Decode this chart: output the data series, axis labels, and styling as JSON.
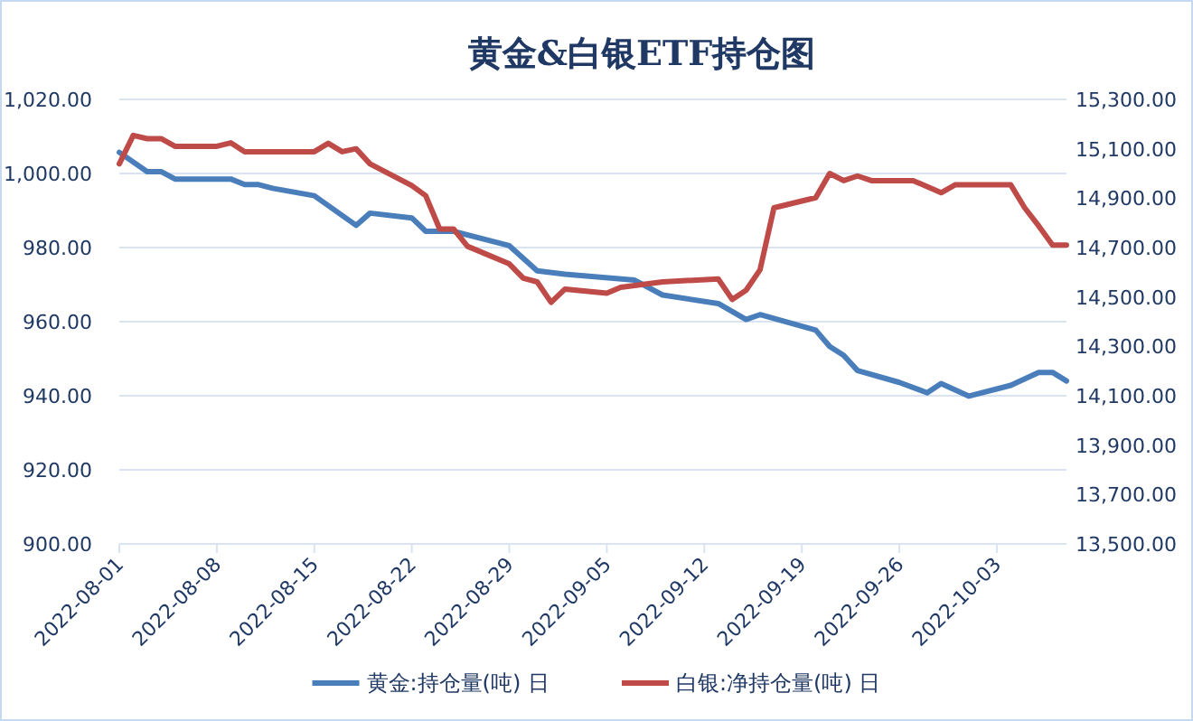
{
  "chart_data": {
    "type": "line",
    "title": "黄金&白银ETF持仓图",
    "legend": "bottom",
    "grid": "y",
    "line_style": "solid",
    "xlim": [
      "2022-08-01",
      "2022-10-08"
    ],
    "xticks": [
      "2022-08-01",
      "2022-08-08",
      "2022-08-15",
      "2022-08-22",
      "2022-08-29",
      "2022-09-05",
      "2022-09-12",
      "2022-09-19",
      "2022-09-26",
      "2022-10-03"
    ],
    "ylim": [
      900,
      1020
    ],
    "yticks": [
      {
        "value": 900,
        "label": "900.00"
      },
      {
        "value": 920,
        "label": "920.00"
      },
      {
        "value": 940,
        "label": "940.00"
      },
      {
        "value": 960,
        "label": "960.00"
      },
      {
        "value": 980,
        "label": "980.00"
      },
      {
        "value": 1000,
        "label": "1,000.00"
      },
      {
        "value": 1020,
        "label": "1,020.00"
      }
    ],
    "y2lim": [
      13500,
      15300
    ],
    "y2ticks": [
      {
        "value": 13500,
        "label": "13,500.00"
      },
      {
        "value": 13700,
        "label": "13,700.00"
      },
      {
        "value": 13900,
        "label": "13,900.00"
      },
      {
        "value": 14100,
        "label": "14,100.00"
      },
      {
        "value": 14300,
        "label": "14,300.00"
      },
      {
        "value": 14500,
        "label": "14,500.00"
      },
      {
        "value": 14700,
        "label": "14,700.00"
      },
      {
        "value": 14900,
        "label": "14,900.00"
      },
      {
        "value": 15100,
        "label": "15,100.00"
      },
      {
        "value": 15300,
        "label": "15,300.00"
      }
    ],
    "series": [
      {
        "name": "黄金:持仓量(吨) 日",
        "color": "#4a7ebb",
        "x": [
          "2022-08-01",
          "2022-08-03",
          "2022-08-04",
          "2022-08-05",
          "2022-08-09",
          "2022-08-10",
          "2022-08-11",
          "2022-08-12",
          "2022-08-15",
          "2022-08-18",
          "2022-08-19",
          "2022-08-22",
          "2022-08-23",
          "2022-08-25",
          "2022-08-29",
          "2022-08-31",
          "2022-09-02",
          "2022-09-07",
          "2022-09-09",
          "2022-09-13",
          "2022-09-15",
          "2022-09-16",
          "2022-09-20",
          "2022-09-21",
          "2022-09-22",
          "2022-09-23",
          "2022-09-26",
          "2022-09-28",
          "2022-09-29",
          "2022-10-01",
          "2022-10-04",
          "2022-10-06",
          "2022-10-07",
          "2022-10-08"
        ],
        "values": [
          1005.7,
          1000.5,
          1000.5,
          998.5,
          998.5,
          997,
          997,
          996,
          994,
          986,
          989.3,
          988,
          984.4,
          984.4,
          980.5,
          973.7,
          972.8,
          971.2,
          967.2,
          964.9,
          960.6,
          961.9,
          957.7,
          953.3,
          950.9,
          946.8,
          943.6,
          940.8,
          943.3,
          939.9,
          942.8,
          946.3,
          946.3,
          944
        ]
      },
      {
        "name": "白银:净持仓量(吨) 日",
        "color": "#be4b48",
        "axis": "y2",
        "x": [
          "2022-08-01",
          "2022-08-02",
          "2022-08-03",
          "2022-08-04",
          "2022-08-05",
          "2022-08-08",
          "2022-08-09",
          "2022-08-10",
          "2022-08-15",
          "2022-08-16",
          "2022-08-17",
          "2022-08-18",
          "2022-08-19",
          "2022-08-22",
          "2022-08-23",
          "2022-08-24",
          "2022-08-25",
          "2022-08-26",
          "2022-08-29",
          "2022-08-30",
          "2022-08-31",
          "2022-09-01",
          "2022-09-02",
          "2022-09-05",
          "2022-09-06",
          "2022-09-09",
          "2022-09-13",
          "2022-09-14",
          "2022-09-15",
          "2022-09-16",
          "2022-09-17",
          "2022-09-20",
          "2022-09-21",
          "2022-09-22",
          "2022-09-23",
          "2022-09-24",
          "2022-09-27",
          "2022-09-29",
          "2022-09-30",
          "2022-10-04",
          "2022-10-05",
          "2022-10-06",
          "2022-10-07",
          "2022-10-08"
        ],
        "values": [
          15039,
          15154,
          15141,
          15141,
          15110,
          15110,
          15124,
          15088,
          15088,
          15122,
          15088,
          15100,
          15039,
          14951,
          14910,
          14775,
          14775,
          14705,
          14634,
          14576,
          14561,
          14478,
          14532,
          14515,
          14539,
          14561,
          14573,
          14490,
          14527,
          14610,
          14861,
          14902,
          15000,
          14971,
          14990,
          14971,
          14971,
          14922,
          14954,
          14954,
          14861,
          14788,
          14710,
          14710
        ]
      }
    ]
  }
}
